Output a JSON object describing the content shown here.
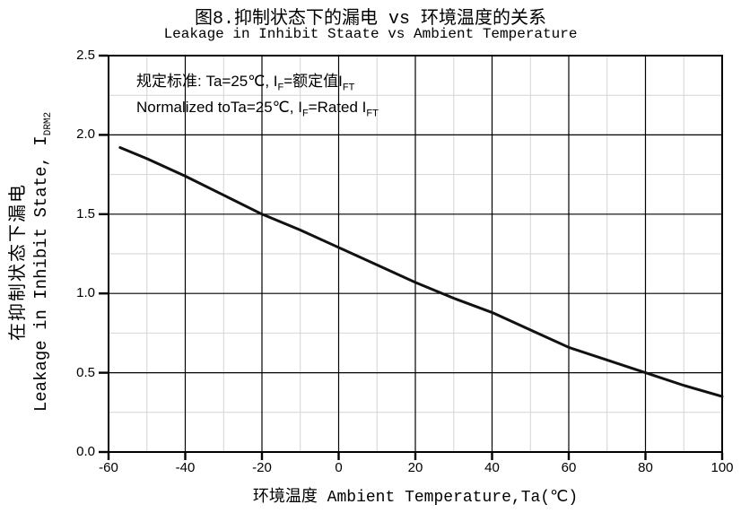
{
  "chart": {
    "title": "图8.抑制状态下的漏电 vs 环境温度的关系",
    "subtitle": "Leakage in Inhibit Staate vs Ambient Temperature",
    "annotation": {
      "line1_prefix": "规定标准: Ta=25℃, I",
      "line1_sub1": "F",
      "line1_mid": "=额定值I",
      "line1_sub2": "FT",
      "line2_prefix": "Normalized toTa=25℃, I",
      "line2_sub1": "F",
      "line2_mid": "=Rated I",
      "line2_sub2": "FT"
    },
    "y_axis": {
      "label_cn": "在抑制状态下漏电",
      "label_en_prefix": "Leakage in Inhibit State, I",
      "label_en_sub": "DRM2"
    },
    "x_axis": {
      "label": "环境温度 Ambient Temperature,Ta(℃)"
    }
  },
  "chart_data": {
    "type": "line",
    "title": "图8.抑制状态下的漏电 vs 环境温度的关系",
    "subtitle": "Leakage in Inhibit Staate vs Ambient Temperature",
    "xlabel": "环境温度 Ambient Temperature,Ta(℃)",
    "ylabel": "在抑制状态下漏电 Leakage in Inhibit State, IDRM2 (normalized)",
    "xlim": [
      -60,
      100
    ],
    "ylim": [
      0.0,
      2.5
    ],
    "x_ticks": [
      -60,
      -40,
      -20,
      0,
      20,
      40,
      60,
      80,
      100
    ],
    "y_ticks": [
      0.0,
      0.5,
      1.0,
      1.5,
      2.0,
      2.5
    ],
    "x_minor_step": 10,
    "y_minor_step": 0.25,
    "grid": "major+minor",
    "legend": "none",
    "annotations": [
      "规定标准: Ta=25℃, IF=额定值IFT",
      "Normalized toTa=25℃, IF=Rated IFT"
    ],
    "series": [
      {
        "name": "IDRM2 normalized vs Ta",
        "x": [
          -57,
          -50,
          -40,
          -30,
          -20,
          -10,
          0,
          10,
          20,
          30,
          40,
          50,
          60,
          70,
          80,
          90,
          100
        ],
        "y": [
          1.92,
          1.85,
          1.74,
          1.62,
          1.5,
          1.4,
          1.29,
          1.18,
          1.07,
          0.97,
          0.88,
          0.77,
          0.66,
          0.58,
          0.5,
          0.42,
          0.35
        ]
      }
    ],
    "colors": {
      "curve": "#111111",
      "major_grid": "#000000",
      "minor_grid": "#d4d4d4",
      "frame": "#000000",
      "text": "#000000"
    }
  }
}
